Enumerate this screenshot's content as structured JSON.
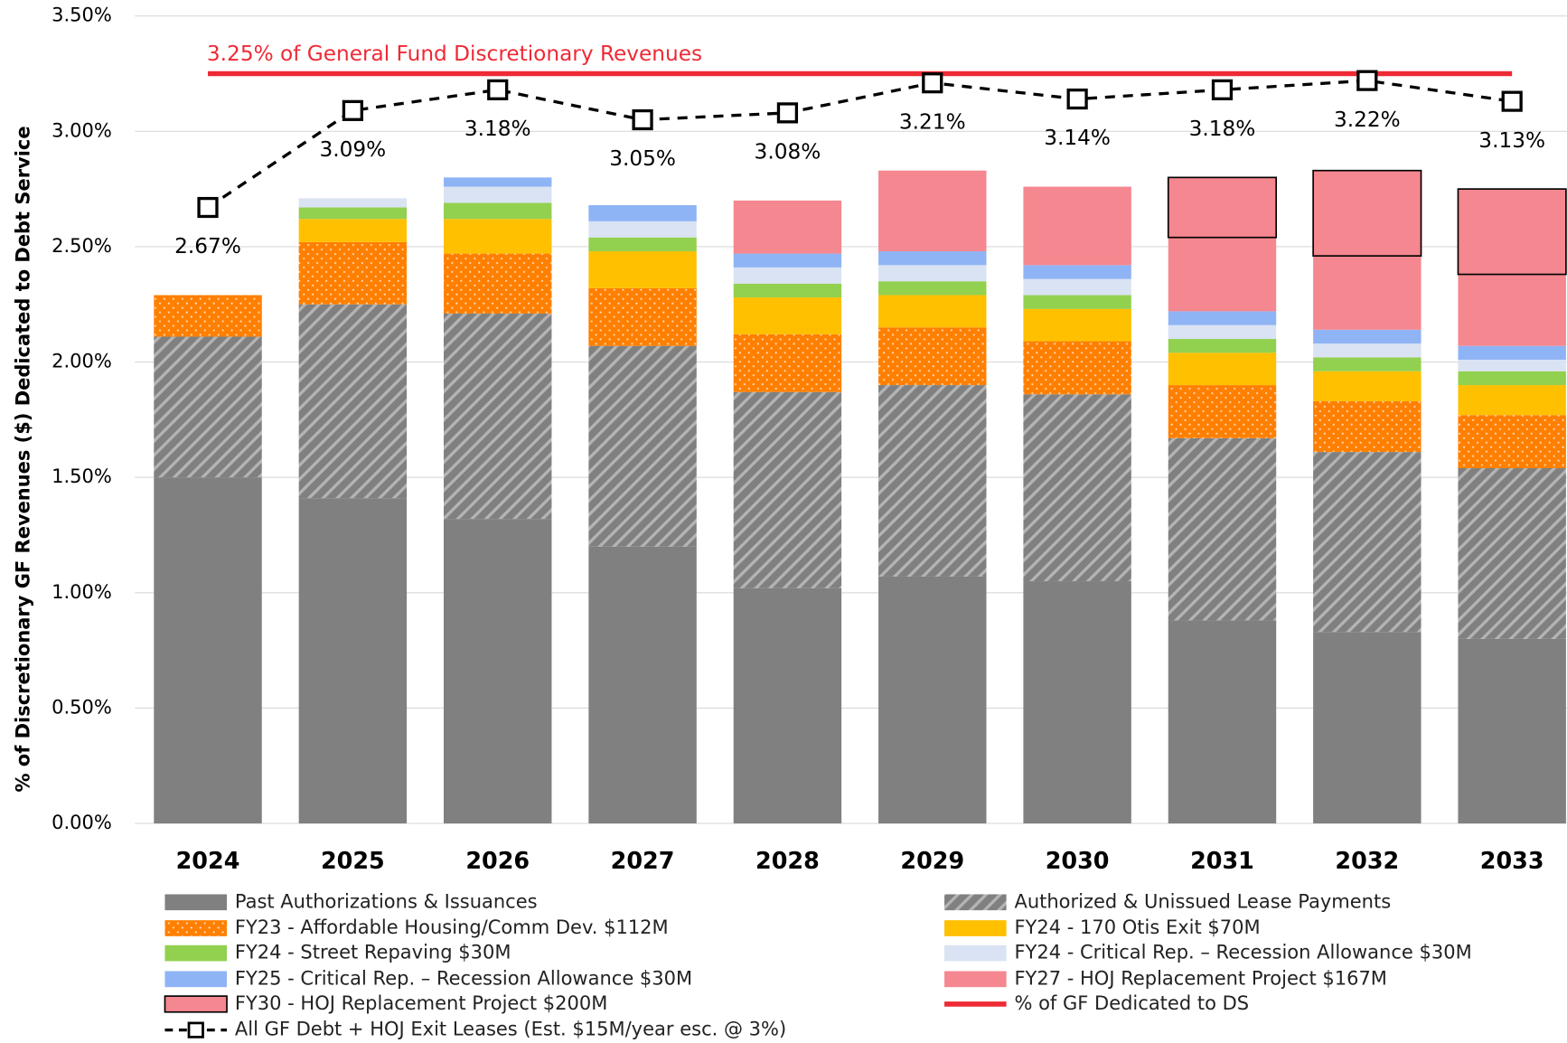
{
  "chart_data": {
    "type": "bar",
    "stacked": true,
    "y_label": "% of Discretionary GF Revenues ($) Dedicated to Debt Service",
    "annotation": "3.25% of General Fund Discretionary Revenues",
    "categories": [
      "2024",
      "2025",
      "2026",
      "2027",
      "2028",
      "2029",
      "2030",
      "2031",
      "2032",
      "2033"
    ],
    "ylim": [
      0,
      3.5
    ],
    "yticks": [
      {
        "value": 0,
        "label": "0.00%"
      },
      {
        "value": 0.5,
        "label": "0.50%"
      },
      {
        "value": 1,
        "label": "1.00%"
      },
      {
        "value": 1.5,
        "label": "1.50%"
      },
      {
        "value": 2,
        "label": "2.00%"
      },
      {
        "value": 2.5,
        "label": "2.50%"
      },
      {
        "value": 3,
        "label": "3.00%"
      },
      {
        "value": 3.5,
        "label": "3.50%"
      }
    ],
    "grid": true,
    "series": [
      {
        "name": "Past Authorizations & Issuances",
        "type": "bar",
        "color": "#808080",
        "values": [
          1.5,
          1.41,
          1.32,
          1.2,
          1.02,
          1.07,
          1.05,
          0.88,
          0.83,
          0.8
        ]
      },
      {
        "name": "Authorized & Unissued Lease Payments",
        "type": "bar",
        "color": "#808080",
        "pattern": "hatch",
        "values": [
          0.61,
          0.84,
          0.89,
          0.87,
          0.85,
          0.83,
          0.81,
          0.79,
          0.78,
          0.74
        ]
      },
      {
        "name": "FY23 - Affordable Housing/Comm Dev. $112M",
        "type": "bar",
        "color": "#ff7f00",
        "pattern": "dots",
        "values": [
          0.18,
          0.27,
          0.26,
          0.25,
          0.25,
          0.25,
          0.23,
          0.23,
          0.22,
          0.23
        ]
      },
      {
        "name": "FY24 - 170 Otis Exit $70M",
        "type": "bar",
        "color": "#ffc000",
        "values": [
          0,
          0.1,
          0.15,
          0.16,
          0.16,
          0.14,
          0.14,
          0.14,
          0.13,
          0.13
        ]
      },
      {
        "name": "FY24 - Street Repaving $30M",
        "type": "bar",
        "color": "#92d050",
        "values": [
          0,
          0.05,
          0.07,
          0.06,
          0.06,
          0.06,
          0.06,
          0.06,
          0.06,
          0.06
        ]
      },
      {
        "name": "FY24 - Critical Rep. – Recession Allowance $30M",
        "type": "bar",
        "color": "#dae3f3",
        "values": [
          0,
          0.04,
          0.07,
          0.07,
          0.07,
          0.07,
          0.07,
          0.06,
          0.06,
          0.05
        ]
      },
      {
        "name": "FY25 - Critical Rep. – Recession Allowance $30M",
        "type": "bar",
        "color": "#8fb4f5",
        "values": [
          0,
          0,
          0.04,
          0.07,
          0.06,
          0.06,
          0.06,
          0.06,
          0.06,
          0.06
        ]
      },
      {
        "name": "FY27 - HOJ Replacement Project $167M",
        "type": "bar",
        "color": "#f4878f",
        "values": [
          0,
          0,
          0,
          0,
          0.23,
          0.35,
          0.34,
          0.32,
          0.32,
          0.31
        ]
      },
      {
        "name": "FY30 - HOJ Replacement Project $200M",
        "type": "bar",
        "color": "#f4878f",
        "outline": "#000000",
        "values": [
          0,
          0,
          0,
          0,
          0,
          0,
          0,
          0.26,
          0.37,
          0.37
        ]
      },
      {
        "name": "% of GF Dedicated to DS",
        "type": "line",
        "color": "#ee2a35",
        "values": [
          3.25,
          3.25,
          3.25,
          3.25,
          3.25,
          3.25,
          3.25,
          3.25,
          3.25,
          3.25
        ]
      },
      {
        "name": "All GF Debt + HOJ Exit Leases (Est. $15M/year esc. @ 3%)",
        "type": "line",
        "color": "#000000",
        "dashed": true,
        "marker": "square",
        "values": [
          2.67,
          3.09,
          3.18,
          3.05,
          3.08,
          3.21,
          3.14,
          3.18,
          3.22,
          3.13
        ],
        "value_labels": [
          "2.67%",
          "3.09%",
          "3.18%",
          "3.05%",
          "3.08%",
          "3.21%",
          "3.14%",
          "3.18%",
          "3.22%",
          "3.13%"
        ]
      }
    ]
  }
}
